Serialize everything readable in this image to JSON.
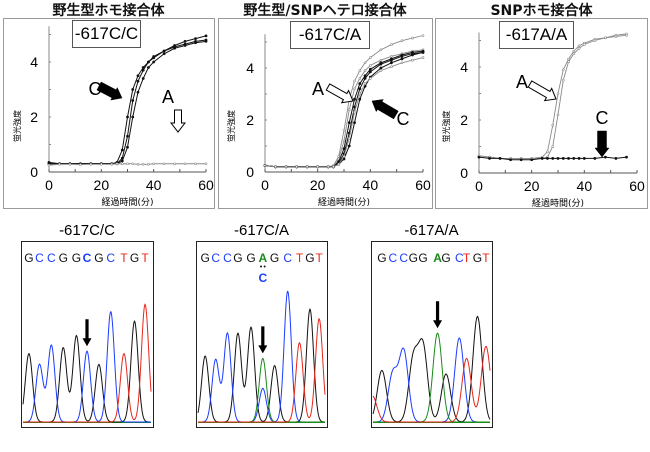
{
  "amplification_titles": [
    "野生型ホモ接合体",
    "野生型/SNPヘテロ接合体",
    "SNPホモ接合体"
  ],
  "chart_data": [
    {
      "type": "line",
      "title": "野生型ホモ接合体",
      "genotype_label": "-617C/C",
      "xlabel": "経過時間(分)",
      "ylabel": "蛍光強度",
      "xlim": [
        0,
        60
      ],
      "ylim": [
        0,
        5.3
      ],
      "xticks": [
        "0",
        "20",
        "40",
        "60"
      ],
      "yticks": [
        "0",
        "2",
        "4"
      ],
      "x": [
        0,
        4,
        8,
        12,
        16,
        20,
        24,
        26,
        28,
        30,
        32,
        34,
        36,
        38,
        40,
        44,
        48,
        52,
        56,
        60
      ],
      "series": [
        {
          "probe": "C",
          "values": [
            0.35,
            0.3,
            0.3,
            0.3,
            0.3,
            0.3,
            0.3,
            0.35,
            0.8,
            2.0,
            3.0,
            3.5,
            3.8,
            4.0,
            4.2,
            4.4,
            4.6,
            4.75,
            4.85,
            4.95
          ]
        },
        {
          "probe": "C",
          "values": [
            0.3,
            0.3,
            0.3,
            0.3,
            0.3,
            0.3,
            0.3,
            0.3,
            0.5,
            1.3,
            2.6,
            3.3,
            3.7,
            4.0,
            4.15,
            4.4,
            4.55,
            4.65,
            4.75,
            4.8
          ]
        },
        {
          "probe": "C",
          "values": [
            0.3,
            0.3,
            0.3,
            0.3,
            0.3,
            0.3,
            0.3,
            0.3,
            0.4,
            0.9,
            2.0,
            2.9,
            3.4,
            3.8,
            4.0,
            4.3,
            4.5,
            4.6,
            4.7,
            4.75
          ]
        },
        {
          "probe": "A",
          "values": [
            0.25,
            0.28,
            0.28,
            0.27,
            0.28,
            0.28,
            0.28,
            0.3,
            0.3,
            0.3,
            0.3,
            0.28,
            0.28,
            0.28,
            0.3,
            0.3,
            0.3,
            0.3,
            0.3,
            0.3
          ]
        }
      ],
      "annotations": [
        {
          "text": "C",
          "arrow": "filled"
        },
        {
          "text": "A",
          "arrow": "outline"
        }
      ]
    },
    {
      "type": "line",
      "title": "野生型/SNPヘテロ接合体",
      "genotype_label": "-617C/A",
      "xlabel": "経過時間(分)",
      "ylabel": "蛍光強度",
      "xlim": [
        0,
        60
      ],
      "ylim": [
        0,
        5.3
      ],
      "xticks": [
        "0",
        "20",
        "40",
        "60"
      ],
      "yticks": [
        "0",
        "2",
        "4"
      ],
      "x": [
        0,
        4,
        8,
        12,
        16,
        20,
        24,
        26,
        28,
        30,
        32,
        34,
        36,
        38,
        40,
        44,
        48,
        52,
        56,
        60
      ],
      "series": [
        {
          "probe": "A",
          "values": [
            0.25,
            0.2,
            0.2,
            0.2,
            0.2,
            0.2,
            0.2,
            0.25,
            0.6,
            1.6,
            2.8,
            3.5,
            3.9,
            4.2,
            4.4,
            4.7,
            4.9,
            5.05,
            5.15,
            5.25
          ]
        },
        {
          "probe": "A",
          "values": [
            0.25,
            0.2,
            0.2,
            0.2,
            0.2,
            0.2,
            0.2,
            0.2,
            0.5,
            1.2,
            2.4,
            3.2,
            3.6,
            3.9,
            4.1,
            4.3,
            4.45,
            4.55,
            4.65,
            4.7
          ]
        },
        {
          "probe": "C",
          "values": [
            0.25,
            0.2,
            0.2,
            0.2,
            0.2,
            0.2,
            0.2,
            0.2,
            0.4,
            0.9,
            1.9,
            2.8,
            3.4,
            3.7,
            3.95,
            4.2,
            4.35,
            4.5,
            4.6,
            4.65
          ]
        },
        {
          "probe": "C",
          "values": [
            0.25,
            0.2,
            0.2,
            0.2,
            0.2,
            0.2,
            0.2,
            0.2,
            0.35,
            0.7,
            1.5,
            2.5,
            3.2,
            3.6,
            3.85,
            4.15,
            4.3,
            4.45,
            4.55,
            4.6
          ]
        },
        {
          "probe": "C",
          "values": [
            0.25,
            0.2,
            0.2,
            0.2,
            0.2,
            0.2,
            0.2,
            0.2,
            0.3,
            0.5,
            1.0,
            1.9,
            2.8,
            3.3,
            3.65,
            4.0,
            4.2,
            4.35,
            4.5,
            4.6
          ]
        },
        {
          "probe": "A",
          "values": [
            0.25,
            0.2,
            0.2,
            0.2,
            0.2,
            0.2,
            0.2,
            0.2,
            0.3,
            0.6,
            1.3,
            2.3,
            3.0,
            3.4,
            3.6,
            3.9,
            4.05,
            4.2,
            4.3,
            4.4
          ]
        }
      ],
      "annotations": [
        {
          "text": "A",
          "arrow": "outline"
        },
        {
          "text": "C",
          "arrow": "filled"
        }
      ]
    },
    {
      "type": "line",
      "title": "SNPホモ接合体",
      "genotype_label": "-617A/A",
      "xlabel": "経過時間(分)",
      "ylabel": "蛍光強度",
      "xlim": [
        0,
        60
      ],
      "ylim": [
        0,
        5.3
      ],
      "xticks": [
        "0",
        "20",
        "40",
        "60"
      ],
      "yticks": [
        "0",
        "2",
        "4"
      ],
      "x": [
        0,
        4,
        8,
        12,
        16,
        20,
        24,
        26,
        28,
        30,
        32,
        34,
        36,
        38,
        40,
        44,
        48,
        52,
        56
      ],
      "series": [
        {
          "probe": "A",
          "values": [
            0.65,
            0.6,
            0.55,
            0.55,
            0.55,
            0.55,
            0.6,
            0.8,
            1.8,
            3.0,
            3.9,
            4.3,
            4.6,
            4.8,
            4.9,
            5.05,
            5.1,
            5.2,
            5.25
          ]
        },
        {
          "probe": "A",
          "values": [
            0.65,
            0.6,
            0.55,
            0.55,
            0.55,
            0.55,
            0.55,
            0.6,
            1.0,
            2.2,
            3.5,
            4.2,
            4.5,
            4.7,
            4.85,
            5.0,
            5.1,
            5.15,
            5.2
          ]
        },
        {
          "probe": "C",
          "values": [
            0.6,
            0.55,
            0.55,
            0.5,
            0.5,
            0.5,
            0.55,
            0.55,
            0.55,
            0.55,
            0.55,
            0.55,
            0.55,
            0.55,
            0.55,
            0.55,
            0.6,
            0.55,
            0.6
          ]
        }
      ],
      "annotations": [
        {
          "text": "A",
          "arrow": "outline"
        },
        {
          "text": "C",
          "arrow": "filled"
        }
      ]
    }
  ],
  "chromatograms": [
    {
      "title": "-617C/C",
      "sequence": [
        "G",
        "C",
        "C",
        "G",
        "G",
        "C",
        "G",
        "C",
        "T",
        "G",
        "T"
      ],
      "highlight_index": 5,
      "base_colors": {
        "G": "#111111",
        "C": "#1a3cff",
        "A": "#1a8a1a",
        "T": "#e8261a"
      },
      "peaks": [
        {
          "base": "G",
          "pos": 6,
          "height": 57
        },
        {
          "base": "C",
          "pos": 14,
          "height": 48
        },
        {
          "base": "C",
          "pos": 23,
          "height": 64
        },
        {
          "base": "G",
          "pos": 32,
          "height": 62
        },
        {
          "base": "G",
          "pos": 42,
          "height": 72
        },
        {
          "base": "C",
          "pos": 50,
          "height": 59
        },
        {
          "base": "G",
          "pos": 59,
          "height": 48
        },
        {
          "base": "C",
          "pos": 68,
          "height": 92
        },
        {
          "base": "T",
          "pos": 78,
          "height": 57
        },
        {
          "base": "G",
          "pos": 86,
          "height": 84
        },
        {
          "base": "T",
          "pos": 94,
          "height": 98
        }
      ]
    },
    {
      "title": "-617C/A",
      "sequence": [
        "G",
        "C",
        "C",
        "G",
        "G",
        "A",
        "G",
        "C",
        "T",
        "G",
        "T"
      ],
      "secondary_call": "C",
      "highlight_index": 5,
      "peaks": [
        {
          "base": "G",
          "pos": 7,
          "height": 55
        },
        {
          "base": "C",
          "pos": 15,
          "height": 52
        },
        {
          "base": "C",
          "pos": 24,
          "height": 74
        },
        {
          "base": "G",
          "pos": 32,
          "height": 74
        },
        {
          "base": "G",
          "pos": 42,
          "height": 79
        },
        {
          "base": "A",
          "pos": 51,
          "height": 53
        },
        {
          "base": "C",
          "pos": 51,
          "height": 28
        },
        {
          "base": "G",
          "pos": 60,
          "height": 47
        },
        {
          "base": "C",
          "pos": 70,
          "height": 109
        },
        {
          "base": "T",
          "pos": 79,
          "height": 66
        },
        {
          "base": "G",
          "pos": 87,
          "height": 94
        },
        {
          "base": "T",
          "pos": 94,
          "height": 86
        }
      ]
    },
    {
      "title": "-617A/A",
      "sequence": [
        "G",
        "C",
        "C",
        "G",
        "G",
        "A",
        "G",
        "C",
        "T",
        "G",
        "T"
      ],
      "highlight_index": 5,
      "peaks": [
        {
          "base": "G",
          "pos": 9,
          "height": 43
        },
        {
          "base": "C",
          "pos": 18,
          "height": 40
        },
        {
          "base": "C",
          "pos": 27,
          "height": 59
        },
        {
          "base": "G",
          "pos": 35,
          "height": 52
        },
        {
          "base": "G",
          "pos": 43,
          "height": 62
        },
        {
          "base": "A",
          "pos": 55,
          "height": 74
        },
        {
          "base": "G",
          "pos": 62,
          "height": 40
        },
        {
          "base": "C",
          "pos": 73,
          "height": 70
        },
        {
          "base": "T",
          "pos": 79,
          "height": 53
        },
        {
          "base": "G",
          "pos": 88,
          "height": 88
        },
        {
          "base": "T",
          "pos": 95,
          "height": 63
        },
        {
          "base": "T",
          "pos": 1,
          "height": 22
        }
      ]
    }
  ]
}
